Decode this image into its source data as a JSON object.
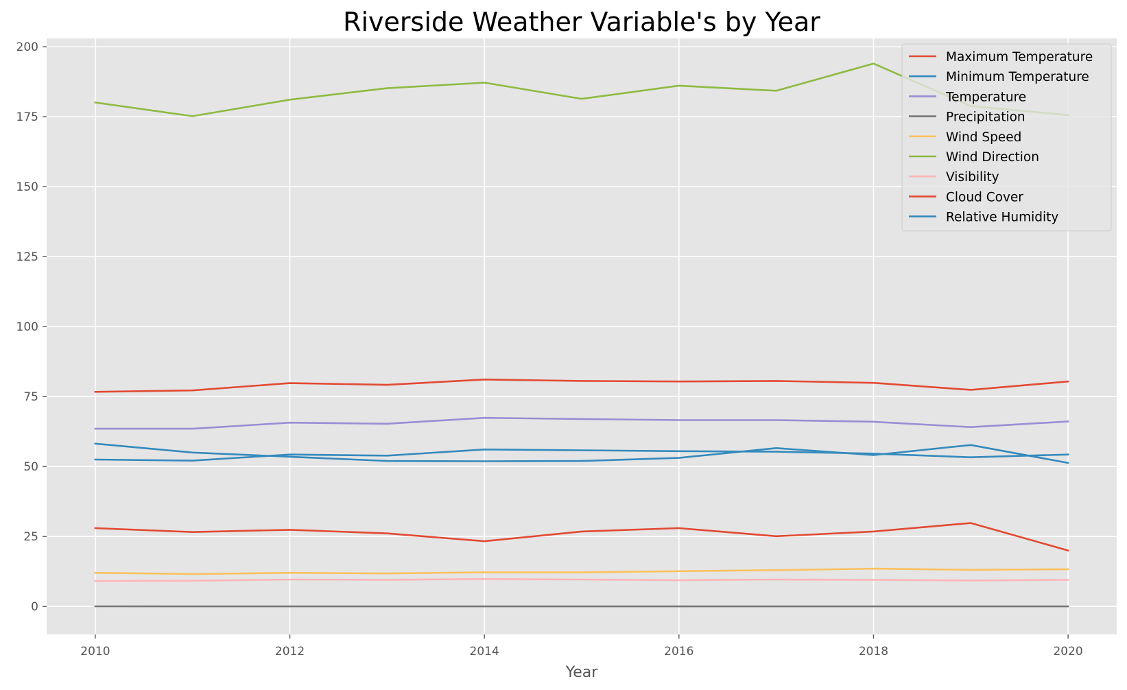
{
  "chart_data": {
    "type": "line",
    "title": "Riverside Weather Variable's by Year",
    "xlabel": "Year",
    "ylabel": "",
    "xlim": [
      2009.5,
      2020.5
    ],
    "ylim": [
      -10,
      203
    ],
    "xticks": [
      "2010",
      "2012",
      "2014",
      "2016",
      "2018",
      "2020"
    ],
    "yticks": [
      "0",
      "25",
      "50",
      "75",
      "100",
      "125",
      "150",
      "175",
      "200"
    ],
    "grid": true,
    "legend_position": "top-right",
    "x": [
      2010,
      2011,
      2012,
      2013,
      2014,
      2015,
      2016,
      2017,
      2018,
      2019,
      2020
    ],
    "series": [
      {
        "name": "Maximum Temperature",
        "color": "#E24A33",
        "values": [
          76.7,
          77.2,
          79.8,
          79.2,
          81.1,
          80.6,
          80.4,
          80.6,
          79.9,
          77.4,
          80.4
        ]
      },
      {
        "name": "Minimum Temperature",
        "color": "#348ABD",
        "values": [
          52.5,
          52.1,
          54.3,
          53.9,
          56.1,
          55.8,
          55.5,
          55.3,
          54.6,
          53.3,
          54.3
        ]
      },
      {
        "name": "Temperature",
        "color": "#988ED5",
        "values": [
          63.5,
          63.5,
          65.7,
          65.3,
          67.4,
          67.0,
          66.6,
          66.6,
          66.0,
          64.1,
          66.1
        ]
      },
      {
        "name": "Precipitation",
        "color": "#777777",
        "values": [
          0.05,
          0.02,
          0.02,
          0.02,
          0.03,
          0.03,
          0.03,
          0.02,
          0.03,
          0.03,
          0.02
        ]
      },
      {
        "name": "Wind Speed",
        "color": "#FBC15E",
        "values": [
          12.0,
          11.6,
          12.0,
          11.8,
          12.2,
          12.2,
          12.6,
          13.0,
          13.5,
          13.1,
          13.3
        ]
      },
      {
        "name": "Wind Direction",
        "color": "#8EBA42",
        "values": [
          180.1,
          175.2,
          181.1,
          185.2,
          187.2,
          181.4,
          186.1,
          184.3,
          194.0,
          178.8,
          175.6
        ]
      },
      {
        "name": "Visibility",
        "color": "#FFB5B8",
        "values": [
          9.1,
          9.2,
          9.6,
          9.5,
          9.8,
          9.6,
          9.4,
          9.6,
          9.5,
          9.3,
          9.5
        ]
      },
      {
        "name": "Cloud Cover",
        "color": "#E24A33",
        "values": [
          28.0,
          26.6,
          27.4,
          26.1,
          23.3,
          26.8,
          28.0,
          25.1,
          26.8,
          29.8,
          20.0
        ]
      },
      {
        "name": "Relative Humidity",
        "color": "#348ABD",
        "values": [
          58.2,
          55.0,
          53.5,
          52.0,
          51.9,
          52.0,
          53.1,
          56.6,
          54.1,
          57.7,
          51.3
        ]
      }
    ]
  }
}
